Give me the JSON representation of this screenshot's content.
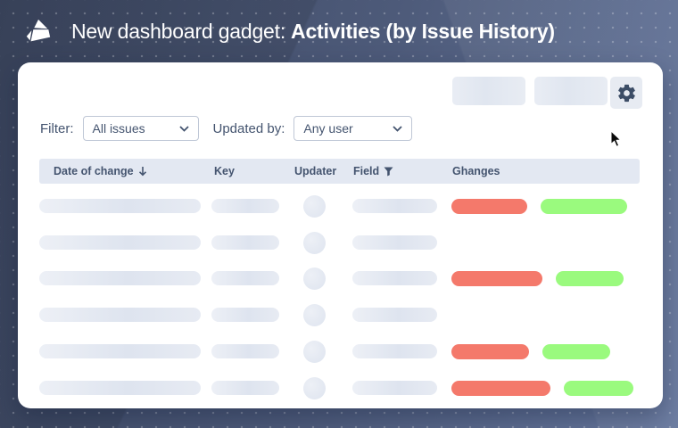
{
  "header": {
    "title_prefix": "New dashboard gadget:",
    "title_emphasis": "Activities (by Issue History)",
    "logo_icon": "origami-triangle-logo"
  },
  "toolbar": {
    "buttons": [
      {
        "type": "skeleton-placeholder"
      },
      {
        "type": "skeleton-placeholder"
      },
      {
        "type": "settings",
        "icon": "gear-icon"
      }
    ]
  },
  "filters": {
    "filter_label": "Filter:",
    "filter_value": "All issues",
    "updated_by_label": "Updated by:",
    "updated_by_value": "Any user"
  },
  "table": {
    "columns": [
      {
        "label": "Date of change",
        "icon": "sort-descending-arrow"
      },
      {
        "label": "Key"
      },
      {
        "label": "Updater"
      },
      {
        "label": "Field",
        "icon": "filter-funnel-icon"
      },
      {
        "label": "Ghanges"
      }
    ],
    "rows": [
      {
        "date": "skeleton",
        "key": "skeleton",
        "updater": "skeleton-avatar",
        "field": "skeleton",
        "changes": {
          "red_w": 85,
          "green_w": 97
        }
      },
      {
        "date": "skeleton",
        "key": "skeleton",
        "updater": "skeleton-avatar",
        "field": "skeleton",
        "changes": null
      },
      {
        "date": "skeleton",
        "key": "skeleton",
        "updater": "skeleton-avatar",
        "field": "skeleton",
        "changes": {
          "red_w": 102,
          "green_w": 76
        }
      },
      {
        "date": "skeleton",
        "key": "skeleton",
        "updater": "skeleton-avatar",
        "field": "skeleton",
        "changes": null
      },
      {
        "date": "skeleton",
        "key": "skeleton",
        "updater": "skeleton-avatar",
        "field": "skeleton",
        "changes": {
          "red_w": 87,
          "green_w": 76
        }
      },
      {
        "date": "skeleton",
        "key": "skeleton",
        "updater": "skeleton-avatar",
        "field": "skeleton",
        "changes": {
          "red_w": 111,
          "green_w": 78
        }
      }
    ]
  },
  "colors": {
    "red_pill": "#F4796B",
    "green_pill": "#9AFA7E",
    "skel_light": "#EDF0F6",
    "skel_dark": "#DEE4EF",
    "thead_bg": "#E3E8F2",
    "navy_text": "#44546F",
    "gear": "#3C4D66",
    "select_border": "#BFC7D6",
    "bg_left": "#3D4862",
    "bg_mid": "#4D5A79",
    "bg_right": "#66779D"
  }
}
